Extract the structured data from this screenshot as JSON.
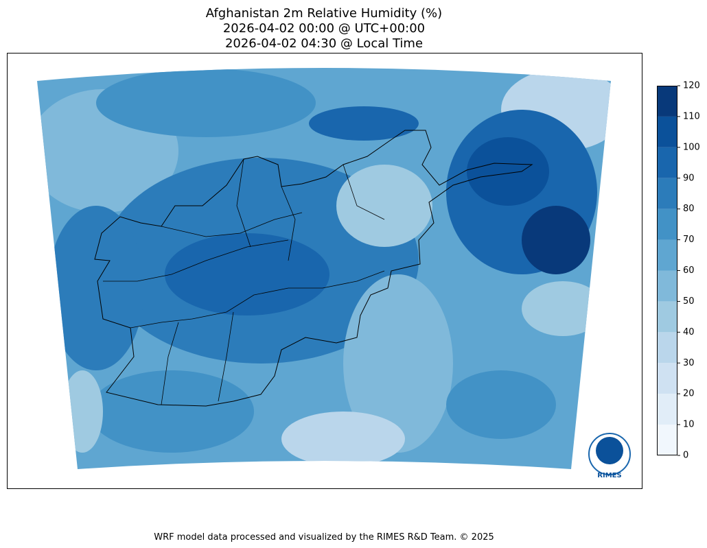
{
  "title": [
    "Afghanistan 2m Relative Humidity (%)",
    "2026-04-02 00:00 @ UTC+00:00",
    "2026-04-02 04:30 @ Local Time"
  ],
  "colorbar": {
    "lim": [
      0,
      120
    ],
    "ticks": [
      0,
      10,
      20,
      30,
      40,
      50,
      60,
      70,
      80,
      90,
      100,
      110,
      120
    ],
    "colors": [
      "#f1f7fd",
      "#e1edf8",
      "#cfe1f2",
      "#bad6eb",
      "#9fcae1",
      "#80b9da",
      "#5fa6d1",
      "#4292c6",
      "#2c7cba",
      "#1966ad",
      "#0b519a",
      "#08397a"
    ]
  },
  "logo": "RIMES",
  "footer": "WRF model data processed and visualized by the RIMES R&D Team. © 2025"
}
